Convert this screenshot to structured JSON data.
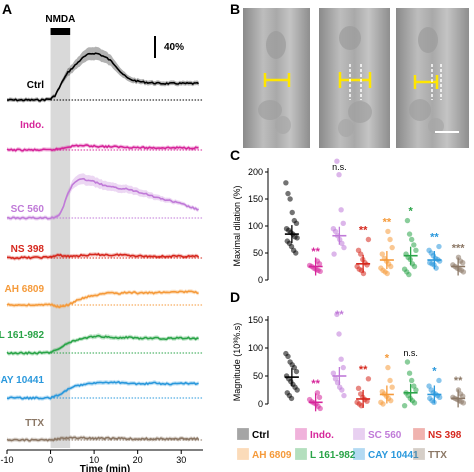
{
  "panels": {
    "A": "A",
    "B": "B",
    "C": "C",
    "D": "D"
  },
  "stimulus_label": "NMDA",
  "scale_bar_label": "40%",
  "colors": {
    "Ctrl": "#000000",
    "Indo.": "#d6259a",
    "SC 560": "#c07ad8",
    "NS 398": "#d6281e",
    "AH 6809": "#f59a3a",
    "L 161-982": "#2aa448",
    "CAY 10441": "#2a98dc",
    "TTX": "#8b7765"
  },
  "chart_data": [
    {
      "id": "A",
      "type": "line",
      "xlabel": "Time (min)",
      "xlim": [
        -10,
        35
      ],
      "xticks": [
        -10,
        0,
        10,
        20,
        30
      ],
      "stimulus_window": [
        0,
        4.5
      ],
      "series": [
        {
          "name": "Ctrl",
          "points": [
            [
              -10,
              0
            ],
            [
              -2,
              0
            ],
            [
              0,
              2
            ],
            [
              1,
              8
            ],
            [
              2,
              22
            ],
            [
              3,
              38
            ],
            [
              4,
              50
            ],
            [
              5,
              58
            ],
            [
              6,
              66
            ],
            [
              7,
              74
            ],
            [
              8,
              80
            ],
            [
              9,
              84
            ],
            [
              10,
              85
            ],
            [
              11,
              84
            ],
            [
              12,
              80
            ],
            [
              13,
              76
            ],
            [
              14,
              70
            ],
            [
              15,
              62
            ],
            [
              16,
              52
            ],
            [
              17,
              44
            ],
            [
              18,
              38
            ],
            [
              20,
              34
            ],
            [
              22,
              32
            ],
            [
              25,
              30
            ],
            [
              28,
              30
            ],
            [
              31,
              30
            ],
            [
              34,
              30
            ]
          ]
        },
        {
          "name": "Indo.",
          "points": [
            [
              -10,
              0
            ],
            [
              0,
              0
            ],
            [
              2,
              2
            ],
            [
              4,
              6
            ],
            [
              6,
              8
            ],
            [
              8,
              8
            ],
            [
              10,
              7
            ],
            [
              14,
              6
            ],
            [
              18,
              5
            ],
            [
              22,
              4
            ],
            [
              26,
              4
            ],
            [
              30,
              4
            ],
            [
              34,
              4
            ]
          ]
        },
        {
          "name": "SC 560",
          "points": [
            [
              -10,
              0
            ],
            [
              0,
              0
            ],
            [
              1,
              2
            ],
            [
              2,
              6
            ],
            [
              3,
              22
            ],
            [
              4,
              45
            ],
            [
              5,
              60
            ],
            [
              6,
              68
            ],
            [
              7,
              70
            ],
            [
              8,
              70
            ],
            [
              10,
              66
            ],
            [
              12,
              60
            ],
            [
              14,
              56
            ],
            [
              16,
              54
            ],
            [
              18,
              52
            ],
            [
              20,
              48
            ],
            [
              22,
              44
            ],
            [
              24,
              38
            ],
            [
              26,
              34
            ],
            [
              28,
              30
            ],
            [
              30,
              26
            ],
            [
              32,
              20
            ],
            [
              34,
              15
            ]
          ]
        },
        {
          "name": "NS 398",
          "points": [
            [
              -10,
              0
            ],
            [
              -2,
              1
            ],
            [
              0,
              2
            ],
            [
              2,
              5
            ],
            [
              4,
              3
            ],
            [
              6,
              4
            ],
            [
              8,
              5
            ],
            [
              10,
              6
            ],
            [
              12,
              6
            ],
            [
              14,
              5
            ],
            [
              16,
              6
            ],
            [
              18,
              5
            ],
            [
              20,
              4
            ],
            [
              22,
              3
            ],
            [
              24,
              3
            ],
            [
              26,
              3
            ],
            [
              28,
              3
            ],
            [
              30,
              3
            ],
            [
              32,
              3
            ],
            [
              34,
              3
            ]
          ]
        },
        {
          "name": "AH 6809",
          "points": [
            [
              -10,
              0
            ],
            [
              -2,
              0
            ],
            [
              0,
              1
            ],
            [
              2,
              -4
            ],
            [
              4,
              0
            ],
            [
              6,
              8
            ],
            [
              8,
              14
            ],
            [
              10,
              17
            ],
            [
              12,
              20
            ],
            [
              14,
              22
            ],
            [
              16,
              21
            ],
            [
              18,
              23
            ],
            [
              20,
              22
            ],
            [
              22,
              22
            ],
            [
              24,
              22
            ],
            [
              26,
              24
            ],
            [
              28,
              24
            ],
            [
              30,
              24
            ],
            [
              32,
              24
            ],
            [
              34,
              22
            ]
          ]
        },
        {
          "name": "L 161-982",
          "points": [
            [
              -10,
              0
            ],
            [
              -2,
              0
            ],
            [
              0,
              1
            ],
            [
              2,
              8
            ],
            [
              4,
              18
            ],
            [
              6,
              24
            ],
            [
              8,
              27
            ],
            [
              10,
              30
            ],
            [
              12,
              30
            ],
            [
              14,
              29
            ],
            [
              16,
              28
            ],
            [
              18,
              28
            ],
            [
              20,
              27
            ],
            [
              22,
              27
            ],
            [
              24,
              27
            ],
            [
              26,
              26
            ],
            [
              28,
              27
            ],
            [
              30,
              27
            ],
            [
              32,
              27
            ],
            [
              34,
              26
            ]
          ]
        },
        {
          "name": "CAY 10441",
          "points": [
            [
              -10,
              0
            ],
            [
              -2,
              0
            ],
            [
              0,
              0
            ],
            [
              2,
              6
            ],
            [
              4,
              16
            ],
            [
              6,
              22
            ],
            [
              8,
              26
            ],
            [
              10,
              28
            ],
            [
              12,
              28
            ],
            [
              14,
              28
            ],
            [
              16,
              28
            ],
            [
              18,
              27
            ],
            [
              20,
              26
            ],
            [
              22,
              26
            ],
            [
              24,
              27
            ],
            [
              26,
              26
            ],
            [
              28,
              25
            ],
            [
              30,
              26
            ],
            [
              32,
              27
            ],
            [
              34,
              26
            ]
          ]
        },
        {
          "name": "TTX",
          "points": [
            [
              -10,
              0
            ],
            [
              0,
              0
            ],
            [
              2,
              2
            ],
            [
              4,
              4
            ],
            [
              6,
              4
            ],
            [
              10,
              3
            ],
            [
              14,
              3
            ],
            [
              20,
              2
            ],
            [
              26,
              2
            ],
            [
              30,
              2
            ],
            [
              34,
              2
            ]
          ]
        }
      ]
    },
    {
      "id": "C",
      "type": "scatter",
      "ylabel": "Maximal dilation (%)",
      "ylim": [
        0,
        200
      ],
      "yticks": [
        0,
        50,
        100,
        150,
        200
      ],
      "groups": [
        {
          "name": "Ctrl",
          "mean": 85,
          "sig": "",
          "values": [
            180,
            160,
            150,
            125,
            110,
            105,
            95,
            92,
            88,
            85,
            80,
            78,
            72,
            68,
            62,
            55,
            50
          ]
        },
        {
          "name": "Indo.",
          "mean": 25,
          "sig": "**",
          "values": [
            35,
            30,
            27,
            25,
            22,
            20,
            18,
            16
          ]
        },
        {
          "name": "SC 560",
          "mean": 82,
          "sig": "n.s.",
          "values": [
            220,
            195,
            130,
            105,
            95,
            90,
            82,
            75,
            68,
            60,
            48
          ]
        },
        {
          "name": "NS 398",
          "mean": 30,
          "sig": "**",
          "values": [
            75,
            55,
            48,
            38,
            32,
            28,
            25,
            20,
            18,
            12
          ]
        },
        {
          "name": "AH 6809",
          "mean": 37,
          "sig": "**",
          "values": [
            90,
            75,
            60,
            48,
            40,
            35,
            30,
            25,
            22,
            18,
            15,
            12
          ]
        },
        {
          "name": "L 161-982",
          "mean": 45,
          "sig": "*",
          "values": [
            110,
            85,
            75,
            65,
            55,
            48,
            42,
            38,
            30,
            25,
            20,
            15,
            10
          ]
        },
        {
          "name": "CAY 10441",
          "mean": 37,
          "sig": "**",
          "values": [
            62,
            55,
            50,
            45,
            40,
            38,
            35,
            32,
            30,
            28,
            22
          ]
        },
        {
          "name": "TTX",
          "mean": 25,
          "sig": "***",
          "values": [
            42,
            35,
            32,
            28,
            25,
            22,
            20,
            18,
            15
          ]
        }
      ]
    },
    {
      "id": "D",
      "type": "scatter",
      "ylabel": "Magnitude (10³%.s)",
      "ylim": [
        0,
        150
      ],
      "yticks": [
        0,
        50,
        100,
        150
      ],
      "groups": [
        {
          "name": "Ctrl",
          "mean": 48,
          "sig": "",
          "values": [
            90,
            85,
            75,
            70,
            65,
            58,
            50,
            45,
            40,
            35,
            30,
            25,
            20,
            15,
            10
          ]
        },
        {
          "name": "Indo.",
          "mean": 3,
          "sig": "**",
          "values": [
            20,
            12,
            8,
            4,
            2,
            0,
            -4,
            -8
          ]
        },
        {
          "name": "SC 560",
          "mean": 50,
          "sig": "**",
          "values": [
            160,
            125,
            80,
            65,
            55,
            45,
            38,
            30,
            25,
            15
          ]
        },
        {
          "name": "NS 398",
          "mean": 9,
          "sig": "**",
          "values": [
            45,
            28,
            18,
            12,
            8,
            5,
            3,
            0,
            -3
          ]
        },
        {
          "name": "AH 6809",
          "mean": 17,
          "sig": "*",
          "values": [
            65,
            42,
            30,
            22,
            18,
            14,
            10,
            6,
            3,
            0
          ]
        },
        {
          "name": "L 161-982",
          "mean": 20,
          "sig": "n.s.",
          "values": [
            75,
            55,
            42,
            32,
            25,
            20,
            15,
            10,
            6,
            2,
            -3
          ]
        },
        {
          "name": "CAY 10441",
          "mean": 17,
          "sig": "*",
          "values": [
            42,
            32,
            25,
            20,
            18,
            15,
            12,
            10,
            6,
            3
          ]
        },
        {
          "name": "TTX",
          "mean": 10,
          "sig": "**",
          "values": [
            25,
            18,
            14,
            12,
            10,
            8,
            6,
            4,
            2
          ]
        }
      ]
    }
  ],
  "legend": [
    "Ctrl",
    "Indo.",
    "SC 560",
    "NS 398",
    "AH 6809",
    "L 161-982",
    "CAY 10441",
    "TTX"
  ]
}
